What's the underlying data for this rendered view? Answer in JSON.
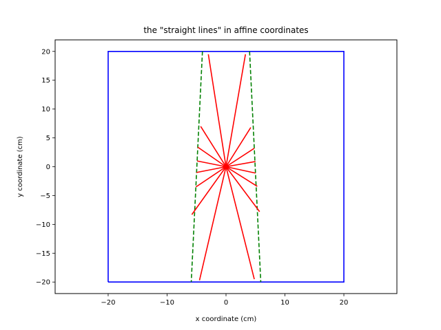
{
  "chart_data": {
    "type": "line",
    "title": "the \"straight lines\" in affine coordinates",
    "xlabel": "x coordinate (cm)",
    "ylabel": "y coordinate (cm)",
    "xlim": [
      -29,
      29
    ],
    "ylim": [
      -22,
      22
    ],
    "xticks": [
      -20,
      -10,
      0,
      10,
      20
    ],
    "yticks": [
      -20,
      -15,
      -10,
      -5,
      0,
      5,
      10,
      15,
      20
    ],
    "grid": false,
    "legend": "none",
    "colors": {
      "box": "#0000ff",
      "rays": "#ff0000",
      "boundary": "#008000"
    },
    "series": [
      {
        "style": "box",
        "color": "#0000ff",
        "x": [
          -20,
          20,
          20,
          -20,
          -20
        ],
        "y": [
          -20,
          -20,
          20,
          20,
          -20
        ]
      },
      {
        "style": "boundary-dashed",
        "color": "#008000",
        "x": [
          -4,
          -5.9
        ],
        "y": [
          20,
          -20
        ]
      },
      {
        "style": "boundary-dashed",
        "color": "#008000",
        "x": [
          4,
          5.9
        ],
        "y": [
          20,
          -20
        ]
      },
      {
        "style": "rays",
        "color": "#ff0000",
        "segments": [
          {
            "x": [
              0,
              3.3
            ],
            "y": [
              0,
              19.5
            ]
          },
          {
            "x": [
              0,
              -3.0
            ],
            "y": [
              0,
              19.5
            ]
          },
          {
            "x": [
              0,
              4.2
            ],
            "y": [
              0,
              6.8
            ]
          },
          {
            "x": [
              0,
              -4.3
            ],
            "y": [
              0,
              7.0
            ]
          },
          {
            "x": [
              0,
              4.8
            ],
            "y": [
              0,
              3.2
            ]
          },
          {
            "x": [
              0,
              -4.8
            ],
            "y": [
              0,
              3.4
            ]
          },
          {
            "x": [
              0,
              5.0
            ],
            "y": [
              0,
              0.9
            ]
          },
          {
            "x": [
              0,
              -4.9
            ],
            "y": [
              0,
              1.0
            ]
          },
          {
            "x": [
              0,
              5.0
            ],
            "y": [
              0,
              -1.1
            ]
          },
          {
            "x": [
              0,
              -5.0
            ],
            "y": [
              0,
              -1.0
            ]
          },
          {
            "x": [
              0,
              5.3
            ],
            "y": [
              0,
              -3.4
            ]
          },
          {
            "x": [
              0,
              -5.1
            ],
            "y": [
              0,
              -3.5
            ]
          },
          {
            "x": [
              0,
              5.7
            ],
            "y": [
              0,
              -7.8
            ]
          },
          {
            "x": [
              0,
              -5.8
            ],
            "y": [
              0,
              -8.3
            ]
          },
          {
            "x": [
              0,
              4.8
            ],
            "y": [
              0,
              -19.5
            ]
          },
          {
            "x": [
              0,
              -4.5
            ],
            "y": [
              0,
              -19.7
            ]
          }
        ]
      }
    ]
  }
}
